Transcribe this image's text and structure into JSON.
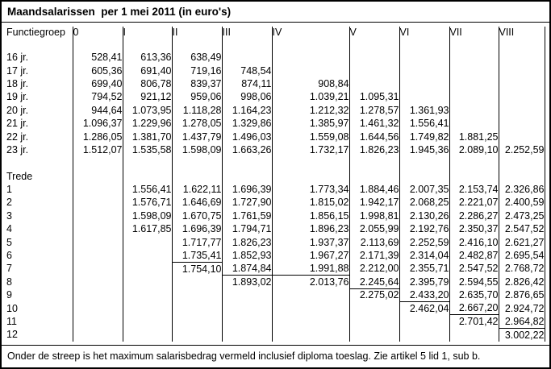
{
  "title": "Maandsalarissen  per 1 mei 2011 (in euro's)",
  "footnote": "Onder de streep is het maximum salarisbedrag vermeld inclusief diploma toeslag. Zie artikel 5 lid 1, sub b.",
  "colors": {
    "text": "#000000",
    "border": "#000000",
    "background": "#ffffff"
  },
  "table": {
    "header": [
      "Functiegroep",
      "0",
      "I",
      "II",
      "III",
      "IV",
      "V",
      "VI",
      "VII",
      "VIII"
    ],
    "age_rows": [
      {
        "label": "16 jr.",
        "values": [
          "528,41",
          "613,36",
          "638,49",
          "",
          "",
          "",
          "",
          "",
          ""
        ]
      },
      {
        "label": "17 jr.",
        "values": [
          "605,36",
          "691,40",
          "719,16",
          "748,54",
          "",
          "",
          "",
          "",
          ""
        ]
      },
      {
        "label": "18 jr.",
        "values": [
          "699,40",
          "806,78",
          "839,37",
          "874,11",
          "908,84",
          "",
          "",
          "",
          ""
        ]
      },
      {
        "label": "19 jr.",
        "values": [
          "794,52",
          "921,12",
          "959,06",
          "998,06",
          "1.039,21",
          "1.095,31",
          "",
          "",
          ""
        ]
      },
      {
        "label": "20 jr.",
        "values": [
          "944,64",
          "1.073,95",
          "1.118,28",
          "1.164,23",
          "1.212,32",
          "1.278,57",
          "1.361,93",
          "",
          ""
        ]
      },
      {
        "label": "21 jr.",
        "values": [
          "1.096,37",
          "1.229,96",
          "1.278,05",
          "1.329,86",
          "1.385,97",
          "1.461,32",
          "1.556,41",
          "",
          ""
        ]
      },
      {
        "label": "22 jr.",
        "values": [
          "1.286,05",
          "1.381,70",
          "1.437,79",
          "1.496,03",
          "1.559,08",
          "1.644,56",
          "1.749,82",
          "1.881,25",
          ""
        ]
      },
      {
        "label": "23 jr.",
        "values": [
          "1.512,07",
          "1.535,58",
          "1.598,09",
          "1.663,26",
          "1.732,17",
          "1.826,23",
          "1.945,36",
          "2.089,10",
          "2.252,59"
        ]
      }
    ],
    "trede_label": "Trede",
    "trede_rows": [
      {
        "label": "1",
        "values": [
          "",
          "1.556,41",
          "1.622,11",
          "1.696,39",
          "1.773,34",
          "1.884,46",
          "2.007,35",
          "2.153,74",
          "2.326,86"
        ],
        "streep": []
      },
      {
        "label": "2",
        "values": [
          "",
          "1.576,71",
          "1.646,69",
          "1.727,90",
          "1.815,02",
          "1.942,17",
          "2.068,25",
          "2.221,07",
          "2.400,59"
        ],
        "streep": []
      },
      {
        "label": "3",
        "values": [
          "",
          "1.598,09",
          "1.670,75",
          "1.761,59",
          "1.856,15",
          "1.998,81",
          "2.130,26",
          "2.286,27",
          "2.473,25"
        ],
        "streep": []
      },
      {
        "label": "4",
        "values": [
          "",
          "1.617,85",
          "1.696,39",
          "1.794,71",
          "1.896,23",
          "2.055,99",
          "2.192,76",
          "2.350,37",
          "2.547,52"
        ],
        "streep": []
      },
      {
        "label": "5",
        "values": [
          "",
          "",
          "1.717,77",
          "1.826,23",
          "1.937,37",
          "2.113,69",
          "2.252,59",
          "2.416,10",
          "2.621,27"
        ],
        "streep": []
      },
      {
        "label": "6",
        "values": [
          "",
          "",
          "1.735,41",
          "1.852,93",
          "1.967,27",
          "2.171,39",
          "2.314,04",
          "2.482,87",
          "2.695,54"
        ],
        "streep": []
      },
      {
        "label": "7",
        "values": [
          "",
          "",
          "1.754,10",
          "1.874,84",
          "1.991,88",
          "2.212,00",
          "2.355,71",
          "2.547,52",
          "2.768,72"
        ],
        "streep": [
          2
        ]
      },
      {
        "label": "8",
        "values": [
          "",
          "",
          "",
          "1.893,02",
          "2.013,76",
          "2.245,64",
          "2.395,79",
          "2.594,55",
          "2.826,42"
        ],
        "streep": [
          3,
          4
        ]
      },
      {
        "label": "9",
        "values": [
          "",
          "",
          "",
          "",
          "",
          "2.275,02",
          "2.433,20",
          "2.635,70",
          "2.876,65"
        ],
        "streep": [
          5
        ]
      },
      {
        "label": "10",
        "values": [
          "",
          "",
          "",
          "",
          "",
          "",
          "2.462,04",
          "2.667,20",
          "2.924,72"
        ],
        "streep": [
          6
        ]
      },
      {
        "label": "11",
        "values": [
          "",
          "",
          "",
          "",
          "",
          "",
          "",
          "2.701,42",
          "2.964,82"
        ],
        "streep": [
          7
        ]
      },
      {
        "label": "12",
        "values": [
          "",
          "",
          "",
          "",
          "",
          "",
          "",
          "",
          "3.002,22"
        ],
        "streep": [
          8
        ]
      }
    ]
  }
}
